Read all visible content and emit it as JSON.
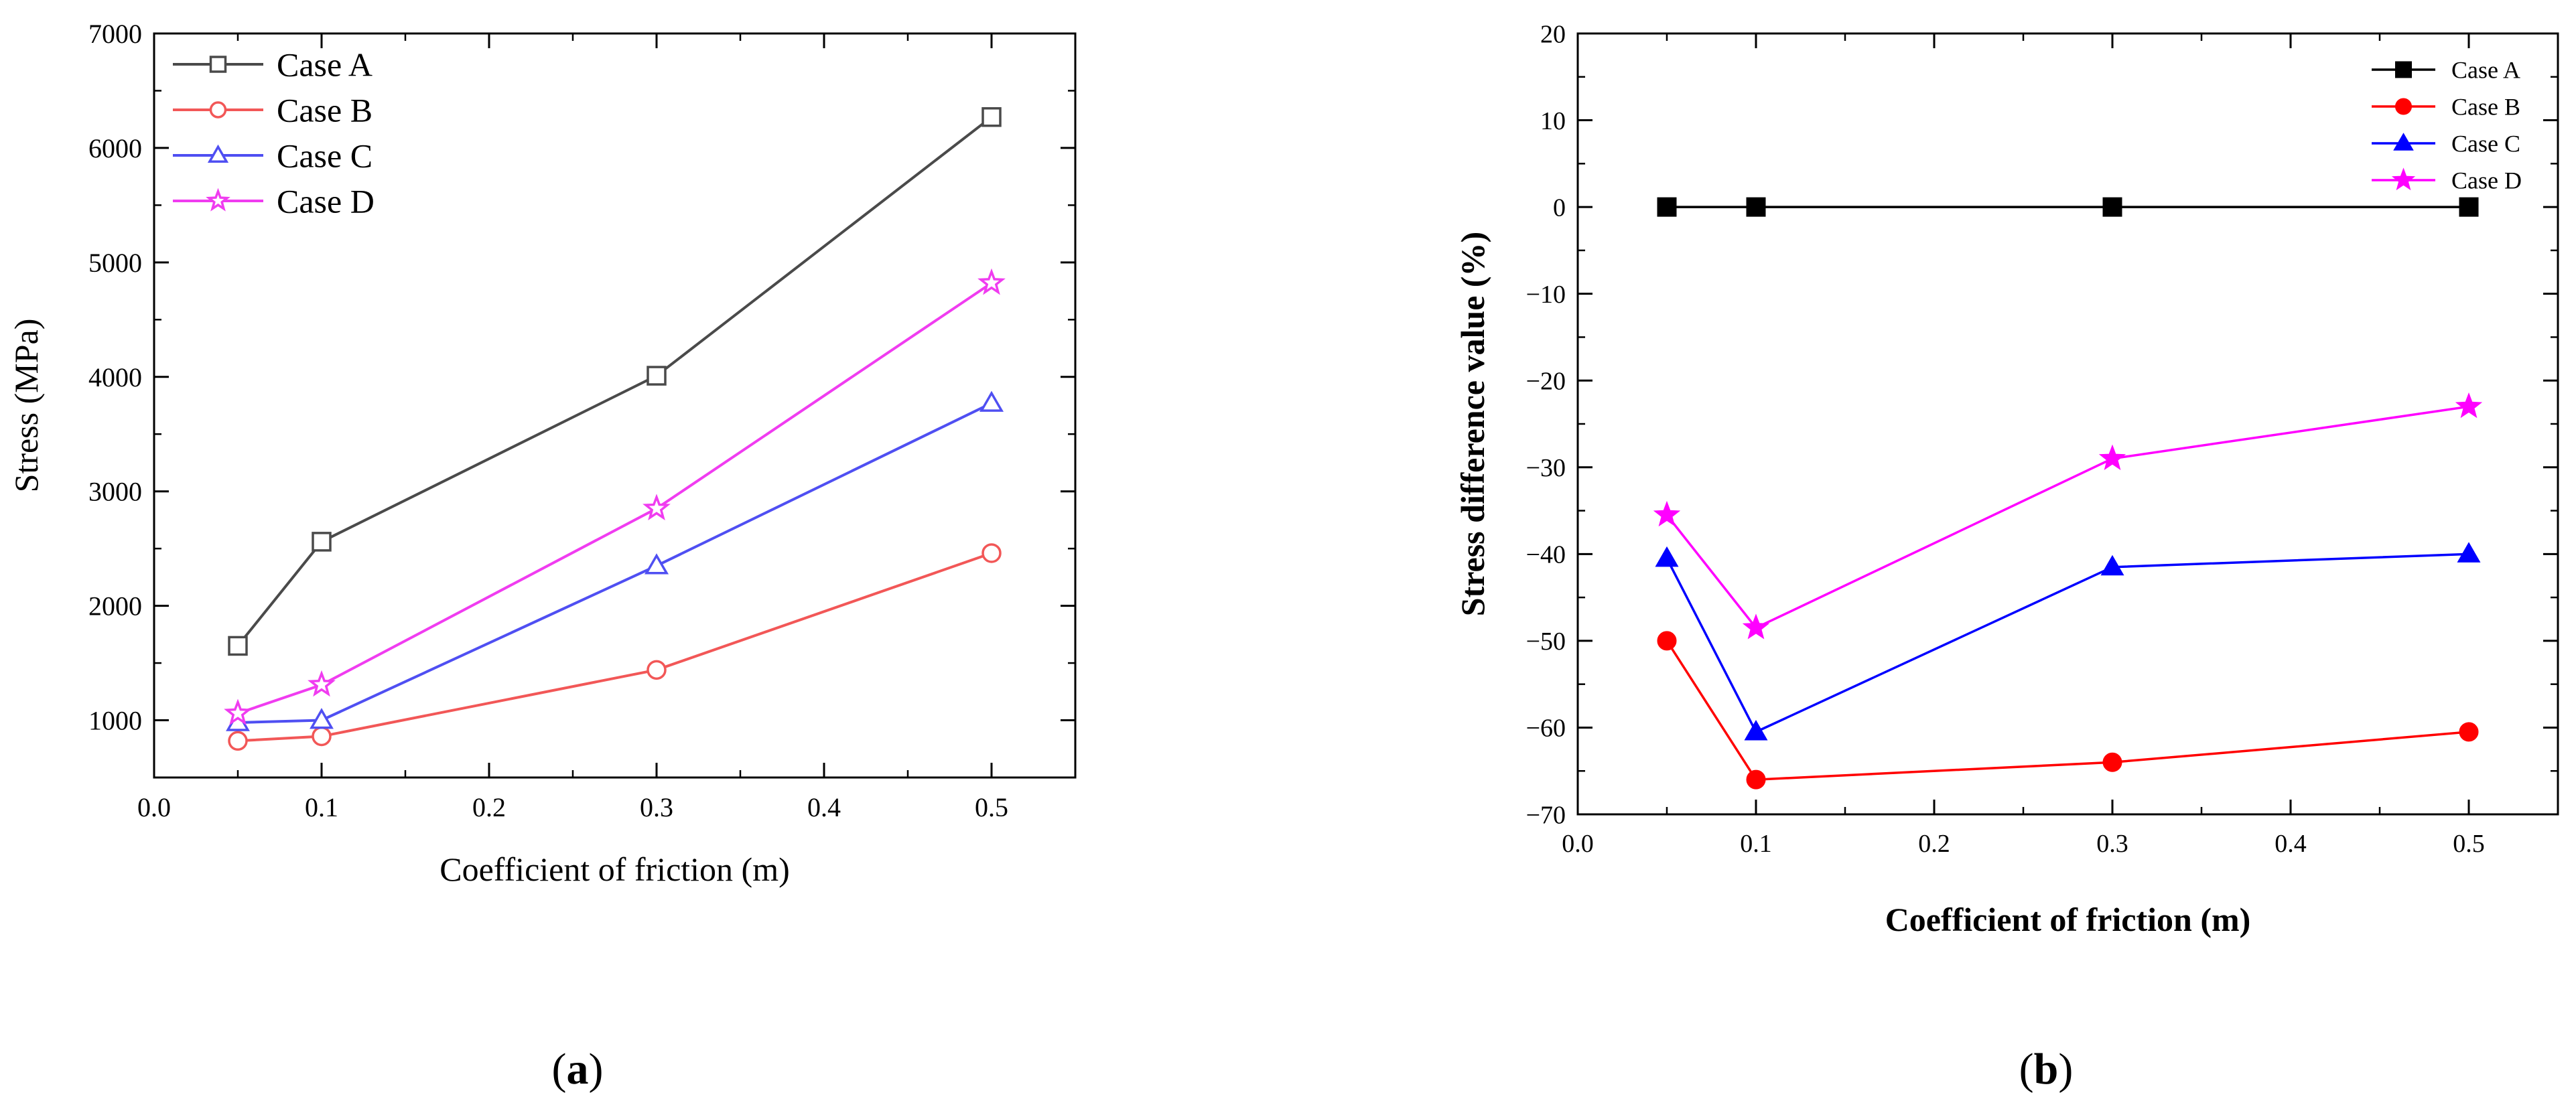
{
  "chart_data": [
    {
      "id": "a",
      "type": "line",
      "caption": "(a)",
      "caption_letter": "a",
      "xlabel": "Coefficient of friction (m)",
      "ylabel": "Stress (MPa)",
      "xlim": [
        0.0,
        0.55
      ],
      "ylim": [
        500,
        7000
      ],
      "xticks": [
        "0.0",
        "0.1",
        "0.2",
        "0.3",
        "0.4",
        "0.5"
      ],
      "yticks": [
        "1000",
        "2000",
        "3000",
        "4000",
        "5000",
        "6000",
        "7000"
      ],
      "legend_position": "top-left",
      "x": [
        0.05,
        0.1,
        0.3,
        0.5
      ],
      "series": [
        {
          "name": "Case A",
          "color": "#4a4a4a",
          "marker": "open-square",
          "values": [
            1650,
            2560,
            4010,
            6270
          ]
        },
        {
          "name": "Case B",
          "color": "#f25757",
          "marker": "open-circle",
          "values": [
            820,
            860,
            1440,
            2460
          ]
        },
        {
          "name": "Case C",
          "color": "#4f4ff2",
          "marker": "open-triangle",
          "values": [
            980,
            1000,
            2350,
            3770
          ]
        },
        {
          "name": "Case D",
          "color": "#f03cf0",
          "marker": "open-star",
          "values": [
            1060,
            1310,
            2850,
            4820
          ]
        }
      ]
    },
    {
      "id": "b",
      "type": "line",
      "caption": "(b)",
      "caption_letter": "b",
      "xlabel": "Coefficient of friction (m)",
      "ylabel": "Stress difference value (%)",
      "xlim": [
        0.0,
        0.55
      ],
      "ylim": [
        -70,
        20
      ],
      "xticks": [
        "0.0",
        "0.1",
        "0.2",
        "0.3",
        "0.4",
        "0.5"
      ],
      "yticks": [
        "20",
        "10",
        "0",
        "−10",
        "−20",
        "−30",
        "−40",
        "−50",
        "−60",
        "−70"
      ],
      "legend_position": "top-right",
      "x": [
        0.05,
        0.1,
        0.3,
        0.5
      ],
      "series": [
        {
          "name": "Case A",
          "color": "#000000",
          "marker": "filled-square",
          "values": [
            0,
            0,
            0,
            0
          ]
        },
        {
          "name": "Case B",
          "color": "#ff0000",
          "marker": "filled-circle",
          "values": [
            -50,
            -66,
            -64,
            -60.5
          ]
        },
        {
          "name": "Case C",
          "color": "#0000ff",
          "marker": "filled-triangle",
          "values": [
            -40.5,
            -60.5,
            -41.5,
            -40
          ]
        },
        {
          "name": "Case D",
          "color": "#ff00ff",
          "marker": "filled-star",
          "values": [
            -35.5,
            -48.5,
            -29,
            -23
          ]
        }
      ]
    }
  ]
}
